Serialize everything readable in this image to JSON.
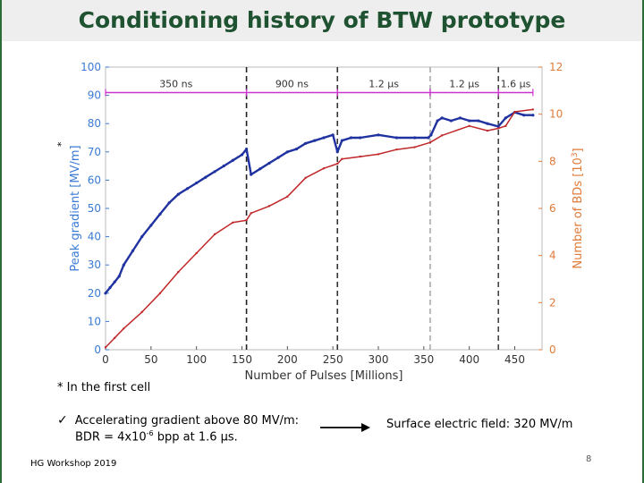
{
  "slide": {
    "title": "Conditioning history of BTW prototype",
    "footnote": "* In the first cell",
    "asterisk_mark": "*",
    "check_line1": "Accelerating gradient above 80 MV/m:",
    "check_line2_prefix": "BDR = 4x10",
    "check_line2_exp": "-6",
    "check_line2_suffix": " bpp at 1.6 μs.",
    "surface_field": "Surface electric field: 320 MV/m",
    "footer": "HG Workshop 2019",
    "page_number": "8",
    "check_icon": "check-icon",
    "arrow_icon": "arrow-right-icon"
  },
  "chart_data": {
    "type": "line",
    "xlabel": "Number of Pulses [Millions]",
    "ylabel_left": "Peak gradient [MV/m]",
    "ylabel_right": "Number of BDs [10",
    "ylabel_right_exp": "3",
    "ylabel_right_close": "]",
    "xlim": [
      0,
      480
    ],
    "ylim_left": [
      0,
      100
    ],
    "ylim_right": [
      0,
      12
    ],
    "x_ticks": [
      0,
      50,
      100,
      150,
      200,
      250,
      300,
      350,
      400,
      450
    ],
    "y_ticks_left": [
      0,
      10,
      20,
      30,
      40,
      50,
      60,
      70,
      80,
      90,
      100
    ],
    "y_ticks_right": [
      0,
      2,
      4,
      6,
      8,
      10,
      12
    ],
    "colors": {
      "gradient": "#2032a0",
      "bds": "#c0282a",
      "pulse_bar": "#cc33cc",
      "left_axis": "#3a7bd5",
      "right_axis": "#e07b39"
    },
    "phase_boundaries": [
      {
        "x": 155,
        "style": "dashed",
        "color": "#222222"
      },
      {
        "x": 255,
        "style": "dashed",
        "color": "#333333"
      },
      {
        "x": 357,
        "style": "dashed",
        "color": "#aaaaaa"
      },
      {
        "x": 432,
        "style": "dashed",
        "color": "#444444"
      }
    ],
    "pulse_lengths": [
      {
        "label": "350 ns",
        "x_start": 0,
        "x_end": 155
      },
      {
        "label": "900 ns",
        "x_start": 155,
        "x_end": 255
      },
      {
        "label": "1.2 μs",
        "x_start": 255,
        "x_end": 357
      },
      {
        "label": "1.2 μs",
        "x_start": 357,
        "x_end": 432
      },
      {
        "label": "1.6 μs",
        "x_start": 432,
        "x_end": 470
      }
    ],
    "pulse_bar_y": 91,
    "series": [
      {
        "name": "Peak gradient",
        "axis": "left",
        "x": [
          0,
          5,
          10,
          15,
          20,
          30,
          40,
          50,
          60,
          70,
          80,
          90,
          100,
          110,
          120,
          130,
          140,
          150,
          155,
          160,
          170,
          180,
          190,
          200,
          210,
          220,
          230,
          240,
          250,
          255,
          260,
          270,
          280,
          300,
          320,
          340,
          355,
          358,
          365,
          370,
          380,
          390,
          400,
          410,
          420,
          432,
          440,
          450,
          460,
          470
        ],
        "y": [
          20,
          22,
          24,
          26,
          30,
          35,
          40,
          44,
          48,
          52,
          55,
          57,
          59,
          61,
          63,
          65,
          67,
          69,
          71,
          62,
          64,
          66,
          68,
          70,
          71,
          73,
          74,
          75,
          76,
          70,
          74,
          75,
          75,
          76,
          75,
          75,
          75,
          76,
          81,
          82,
          81,
          82,
          81,
          81,
          80,
          79,
          82,
          84,
          83,
          83
        ]
      },
      {
        "name": "Number of BDs",
        "axis": "right",
        "x": [
          0,
          10,
          20,
          40,
          60,
          80,
          100,
          120,
          140,
          155,
          160,
          180,
          200,
          220,
          240,
          255,
          260,
          280,
          300,
          320,
          340,
          357,
          370,
          400,
          420,
          432,
          440,
          450,
          470
        ],
        "y": [
          0.1,
          0.5,
          0.9,
          1.6,
          2.4,
          3.3,
          4.1,
          4.9,
          5.4,
          5.5,
          5.8,
          6.1,
          6.5,
          7.3,
          7.7,
          7.9,
          8.1,
          8.2,
          8.3,
          8.5,
          8.6,
          8.8,
          9.1,
          9.5,
          9.3,
          9.4,
          9.5,
          10.1,
          10.2
        ]
      }
    ]
  }
}
